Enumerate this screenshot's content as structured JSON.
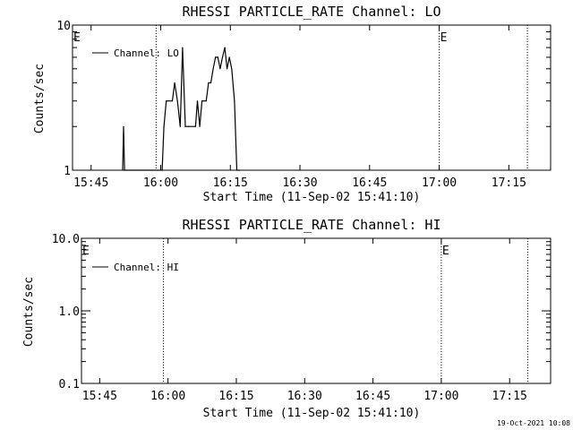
{
  "chart_data": [
    {
      "type": "line",
      "title": "RHESSI PARTICLE_RATE Channel: LO",
      "xlabel": "Start Time (11-Sep-02 15:41:10)",
      "ylabel": "Counts/sec",
      "y_scale": "log",
      "ylim": [
        1,
        10
      ],
      "y_tick_labels": [
        "1",
        "10"
      ],
      "x_range": [
        "15:41",
        "17:24"
      ],
      "x_tick_labels": [
        "15:45",
        "16:00",
        "16:15",
        "16:30",
        "16:45",
        "17:00",
        "17:15"
      ],
      "grid": false,
      "legend_position": "top-left",
      "markers": [
        {
          "time": "15:41",
          "label": "E"
        },
        {
          "time": "15:59",
          "label": ""
        },
        {
          "time": "17:00",
          "label": "E"
        },
        {
          "time": "17:19",
          "label": ""
        }
      ],
      "series": [
        {
          "name": "Channel: LO",
          "x": [
            "15:51.8",
            "15:52.0",
            "15:52.2",
            "16:00.3",
            "16:00.7",
            "16:01.2",
            "16:01.8",
            "16:02.5",
            "16:03.0",
            "16:03.6",
            "16:04.2",
            "16:04.7",
            "16:05.3",
            "16:06.0",
            "16:07.5",
            "16:07.9",
            "16:08.4",
            "16:08.9",
            "16:09.3",
            "16:09.8",
            "16:10.3",
            "16:10.8",
            "16:11.3",
            "16:11.8",
            "16:12.3",
            "16:12.8",
            "16:13.3",
            "16:13.8",
            "16:14.3",
            "16:14.8",
            "16:15.3",
            "16:15.9",
            "16:16.4",
            "16:17.0"
          ],
          "y": [
            1.0,
            2.0,
            1.0,
            1.0,
            2.0,
            3.0,
            3.0,
            3.0,
            4.0,
            3.0,
            2.0,
            7.0,
            2.0,
            2.0,
            2.0,
            3.0,
            2.0,
            3.0,
            3.0,
            3.0,
            4.0,
            4.0,
            5.0,
            6.0,
            6.0,
            5.0,
            6.0,
            7.0,
            5.0,
            6.0,
            5.0,
            3.0,
            1.0,
            1.0
          ]
        }
      ]
    },
    {
      "type": "line",
      "title": "RHESSI PARTICLE_RATE Channel: HI",
      "xlabel": "Start Time (11-Sep-02 15:41:10)",
      "ylabel": "Counts/sec",
      "y_scale": "log",
      "ylim": [
        0.1,
        10
      ],
      "y_tick_labels": [
        "0.1",
        "1.0",
        "10.0"
      ],
      "x_range": [
        "15:41",
        "17:24"
      ],
      "x_tick_labels": [
        "15:45",
        "16:00",
        "16:15",
        "16:30",
        "16:45",
        "17:00",
        "17:15"
      ],
      "grid": false,
      "legend_position": "top-left",
      "markers": [
        {
          "time": "15:41",
          "label": "E"
        },
        {
          "time": "15:59",
          "label": ""
        },
        {
          "time": "17:00",
          "label": "E"
        },
        {
          "time": "17:19",
          "label": ""
        }
      ],
      "series": [
        {
          "name": "Channel: HI",
          "x": [],
          "y": []
        }
      ]
    }
  ],
  "timestamp": "19-Oct-2021 10:08"
}
